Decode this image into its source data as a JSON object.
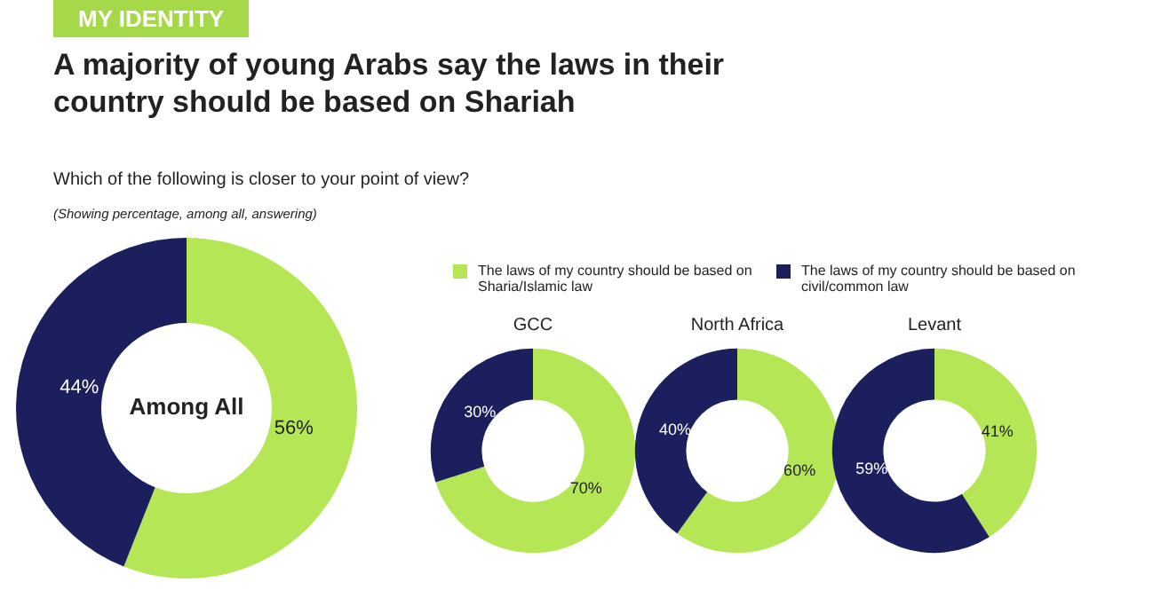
{
  "chart_data": [
    {
      "type": "donut",
      "title": "Among All",
      "categories": [
        "The laws of my country should be based on Sharia/Islamic law",
        "The laws of my country should be based on civil/common law"
      ],
      "values": [
        56,
        44
      ],
      "colors": [
        "#b5e655",
        "#1b1f5e"
      ],
      "value_labels": [
        "56%",
        "44%"
      ],
      "legend": "top right",
      "annotations": [
        "MY IDENTITY",
        "A majority of young Arabs say the laws in their country should be based on Shariah",
        "Which of the following is closer to your point of view?",
        "(Showing percentage, among all, answering)"
      ]
    },
    {
      "type": "donut",
      "title": "GCC",
      "values": [
        70,
        30
      ],
      "colors": [
        "#b5e655",
        "#1b1f5e"
      ],
      "value_labels": [
        "70%",
        "30%"
      ]
    },
    {
      "type": "donut",
      "title": "North Africa",
      "values": [
        60,
        40
      ],
      "colors": [
        "#b5e655",
        "#1b1f5e"
      ],
      "value_labels": [
        "60%",
        "40%"
      ]
    },
    {
      "type": "donut",
      "title": "Levant",
      "values": [
        41,
        59
      ],
      "colors": [
        "#b5e655",
        "#1b1f5e"
      ],
      "value_labels": [
        "41%",
        "59%"
      ]
    }
  ]
}
